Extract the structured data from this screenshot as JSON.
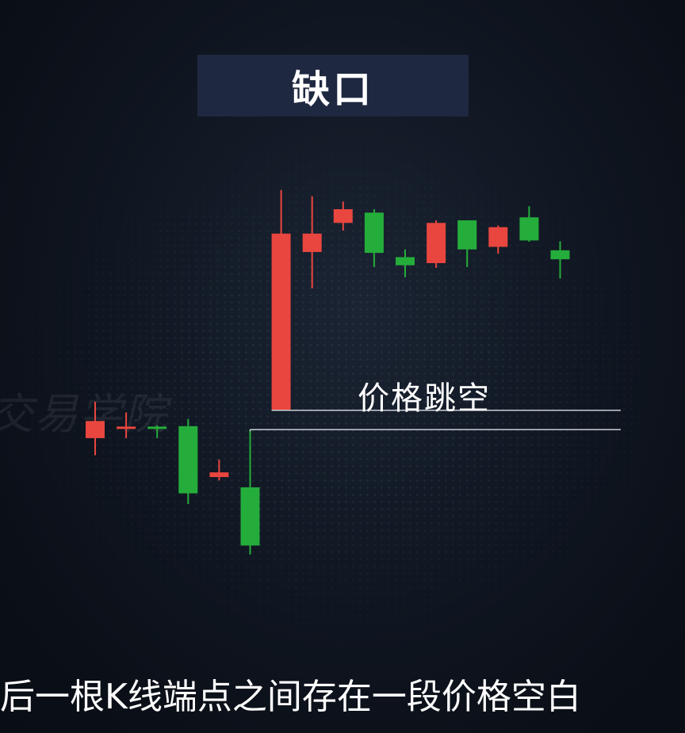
{
  "title": "缺口",
  "watermark": "交易学院",
  "annotation": "价格跳空",
  "caption": "后一根K线端点之间存在一段价格空白",
  "colors": {
    "up": "#e8463f",
    "down": "#25ad3b",
    "guide_line": "#c9ced6",
    "title_bg": "#1e2840"
  },
  "chart_data": {
    "type": "candlestick",
    "ylim": [
      0,
      100
    ],
    "grid": false,
    "candles": [
      {
        "open": 36.5,
        "close": 40.5,
        "high": 45.0,
        "low": 32.5,
        "color": "red"
      },
      {
        "open": 39.0,
        "close": 39.2,
        "high": 42.5,
        "low": 36.5,
        "color": "red"
      },
      {
        "open": 39.2,
        "close": 38.7,
        "high": 39.5,
        "low": 36.5,
        "color": "green"
      },
      {
        "open": 39.3,
        "close": 23.6,
        "high": 41.0,
        "low": 21.1,
        "color": "green"
      },
      {
        "open": 27.4,
        "close": 28.5,
        "high": 31.5,
        "low": 26.6,
        "color": "red"
      },
      {
        "open": 25.0,
        "close": 11.4,
        "high": 38.5,
        "low": 9.3,
        "color": "green"
      },
      {
        "open": 43.0,
        "close": 84.3,
        "high": 94.5,
        "low": 43.0,
        "color": "red"
      },
      {
        "open": 80.0,
        "close": 84.3,
        "high": 93.0,
        "low": 71.5,
        "color": "red"
      },
      {
        "open": 86.8,
        "close": 90.0,
        "high": 91.8,
        "low": 85.0,
        "color": "red"
      },
      {
        "open": 89.2,
        "close": 79.8,
        "high": 90.0,
        "low": 76.5,
        "color": "green"
      },
      {
        "open": 78.8,
        "close": 76.9,
        "high": 80.6,
        "low": 74.1,
        "color": "green"
      },
      {
        "open": 77.4,
        "close": 86.8,
        "high": 87.4,
        "low": 76.3,
        "color": "red"
      },
      {
        "open": 87.4,
        "close": 80.6,
        "high": 87.4,
        "low": 76.5,
        "color": "green"
      },
      {
        "open": 81.2,
        "close": 85.8,
        "high": 86.2,
        "low": 79.6,
        "color": "red"
      },
      {
        "open": 88.1,
        "close": 82.7,
        "high": 90.7,
        "low": 82.4,
        "color": "green"
      },
      {
        "open": 80.4,
        "close": 78.3,
        "high": 82.5,
        "low": 73.8,
        "color": "green"
      }
    ],
    "gap": {
      "upper": 43.0,
      "lower": 38.5,
      "label": "价格跳空"
    }
  }
}
